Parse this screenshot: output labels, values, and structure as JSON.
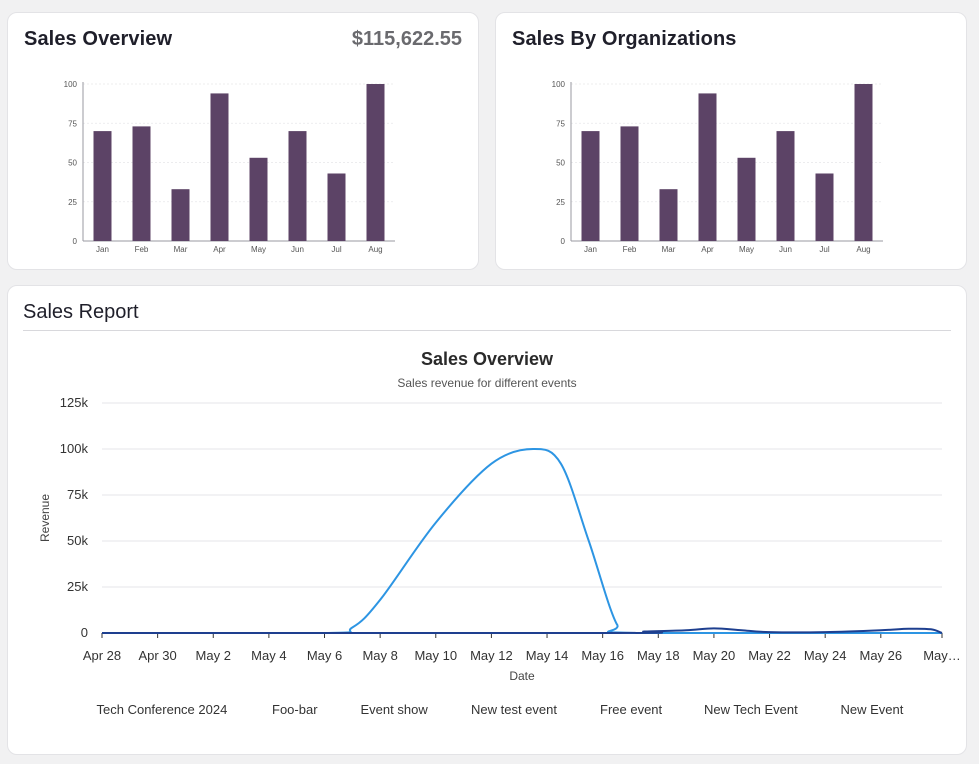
{
  "overview_card": {
    "title": "Sales Overview",
    "amount": "$115,622.55"
  },
  "orgs_card": {
    "title": "Sales By Organizations"
  },
  "report": {
    "title": "Sales Report",
    "legend": [
      "Tech Conference 2024",
      "Foo-bar",
      "Event show",
      "New test event",
      "Free event",
      "New Tech Event",
      "New Event"
    ]
  },
  "colors": {
    "bar": "#5c4366",
    "line_light": "#2d95e3",
    "line_dark": "#1e3f8f",
    "grid": "#e6e6e9",
    "axis": "#9a9aa2"
  },
  "chart_data": [
    {
      "type": "bar",
      "categories": [
        "Jan",
        "Feb",
        "Mar",
        "Apr",
        "May",
        "Jun",
        "Jul",
        "Aug"
      ],
      "values": [
        70,
        73,
        33,
        94,
        53,
        70,
        43,
        100
      ],
      "ylim": [
        0,
        100
      ],
      "yticks": [
        0,
        25,
        50,
        75,
        100
      ],
      "title": "",
      "xlabel": "",
      "ylabel": ""
    },
    {
      "type": "bar",
      "categories": [
        "Jan",
        "Feb",
        "Mar",
        "Apr",
        "May",
        "Jun",
        "Jul",
        "Aug"
      ],
      "values": [
        70,
        73,
        33,
        94,
        53,
        70,
        43,
        100
      ],
      "ylim": [
        0,
        100
      ],
      "yticks": [
        0,
        25,
        50,
        75,
        100
      ],
      "title": "",
      "xlabel": "",
      "ylabel": ""
    },
    {
      "type": "line",
      "title": "Sales Overview",
      "subtitle": "Sales revenue for different events",
      "xlabel": "Date",
      "ylabel": "Revenue",
      "ylim": [
        0,
        125000
      ],
      "yticks": [
        0,
        25000,
        50000,
        75000,
        100000,
        125000
      ],
      "ytick_labels": [
        "0",
        "25k",
        "50k",
        "75k",
        "100k",
        "125k"
      ],
      "xtick_labels": [
        "Apr 28",
        "Apr 30",
        "May 2",
        "May 4",
        "May 6",
        "May 8",
        "May 10",
        "May 12",
        "May 14",
        "May 16",
        "May 18",
        "May 20",
        "May 22",
        "May 24",
        "May 26",
        "May…"
      ],
      "x_start_day": 0,
      "x_end_day": 30.2,
      "series": [
        {
          "name": "Tech Conference 2024",
          "color": "#2d95e3",
          "points": [
            [
              0,
              0
            ],
            [
              8,
              0
            ],
            [
              9,
              3000
            ],
            [
              10,
              18000
            ],
            [
              12,
              60000
            ],
            [
              14,
              92000
            ],
            [
              15.5,
              100000
            ],
            [
              16.5,
              92000
            ],
            [
              17.5,
              50000
            ],
            [
              18.5,
              5000
            ],
            [
              19.2,
              0
            ],
            [
              30.2,
              0
            ]
          ]
        },
        {
          "name": "New Event",
          "color": "#1e3f8f",
          "points": [
            [
              0,
              0
            ],
            [
              18.5,
              0
            ],
            [
              19.5,
              800
            ],
            [
              21,
              1500
            ],
            [
              22,
              2500
            ],
            [
              23,
              1500
            ],
            [
              24,
              500
            ],
            [
              26,
              500
            ],
            [
              28,
              1500
            ],
            [
              29,
              2300
            ],
            [
              29.8,
              2000
            ],
            [
              30.2,
              0
            ]
          ]
        }
      ]
    }
  ]
}
